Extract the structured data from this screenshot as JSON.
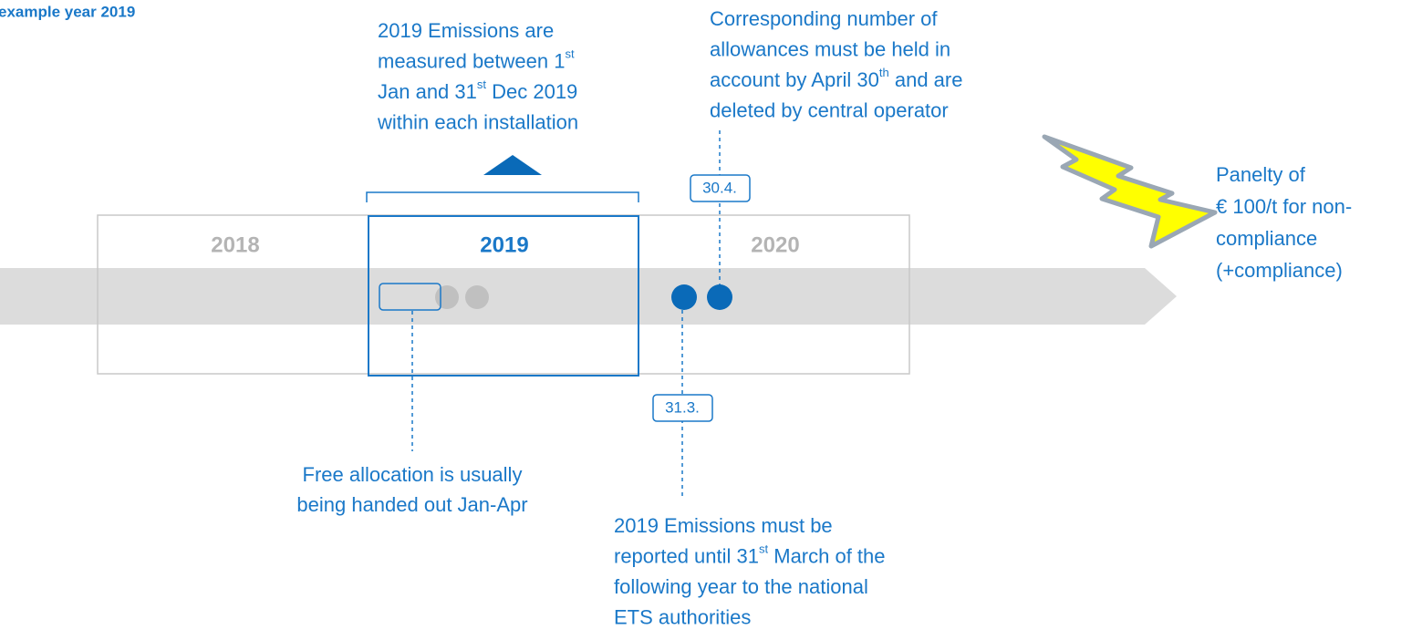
{
  "title": "example year 2019",
  "years": [
    "2018",
    "2019",
    "2020"
  ],
  "dates": {
    "surrender": "30.4.",
    "report": "31.3."
  },
  "notes": {
    "measured": [
      {
        "text": "2019 Emissions are"
      },
      {
        "text": "measured between 1",
        "sup": "st"
      },
      {
        "text": "Jan and 31",
        "sup": "st",
        "after": " Dec 2019"
      },
      {
        "text": "within each installation"
      }
    ],
    "surrender": [
      {
        "text": "Corresponding number of"
      },
      {
        "text": "allowances must be held in"
      },
      {
        "text": "account by April 30",
        "sup": "th",
        "after": " and are"
      },
      {
        "text": "deleted by central operator"
      }
    ],
    "allocation": [
      {
        "text": "Free allocation is usually"
      },
      {
        "text": "being handed out Jan-Apr"
      }
    ],
    "report": [
      {
        "text": "2019 Emissions must be"
      },
      {
        "text": "reported until 31",
        "sup": "st",
        "after": " March of the"
      },
      {
        "text": "following year to the national"
      },
      {
        "text": "ETS authorities"
      }
    ],
    "penalty": [
      {
        "text": "Panelty of"
      },
      {
        "text": "€ 100/t for non-"
      },
      {
        "text": "compliance"
      },
      {
        "text": "(+compliance)"
      }
    ]
  }
}
